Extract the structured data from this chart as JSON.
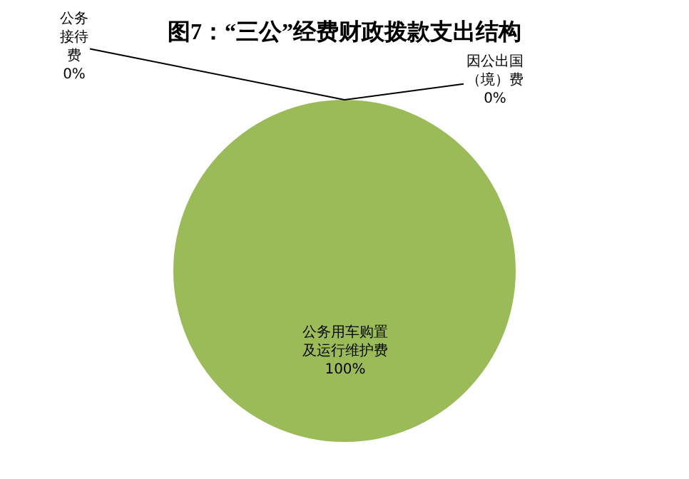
{
  "chart_data": {
    "type": "pie",
    "title": "图7：“三公”经费财政拨款支出结构",
    "categories": [
      "公务接待费",
      "因公出国（境）费",
      "公务用车购置及运行维护费"
    ],
    "values": [
      0,
      0,
      100
    ],
    "value_labels": [
      "0%",
      "0%",
      "100%"
    ],
    "colors": [
      "#4f81bd",
      "#c0504d",
      "#9bbb59"
    ],
    "legend": false
  }
}
